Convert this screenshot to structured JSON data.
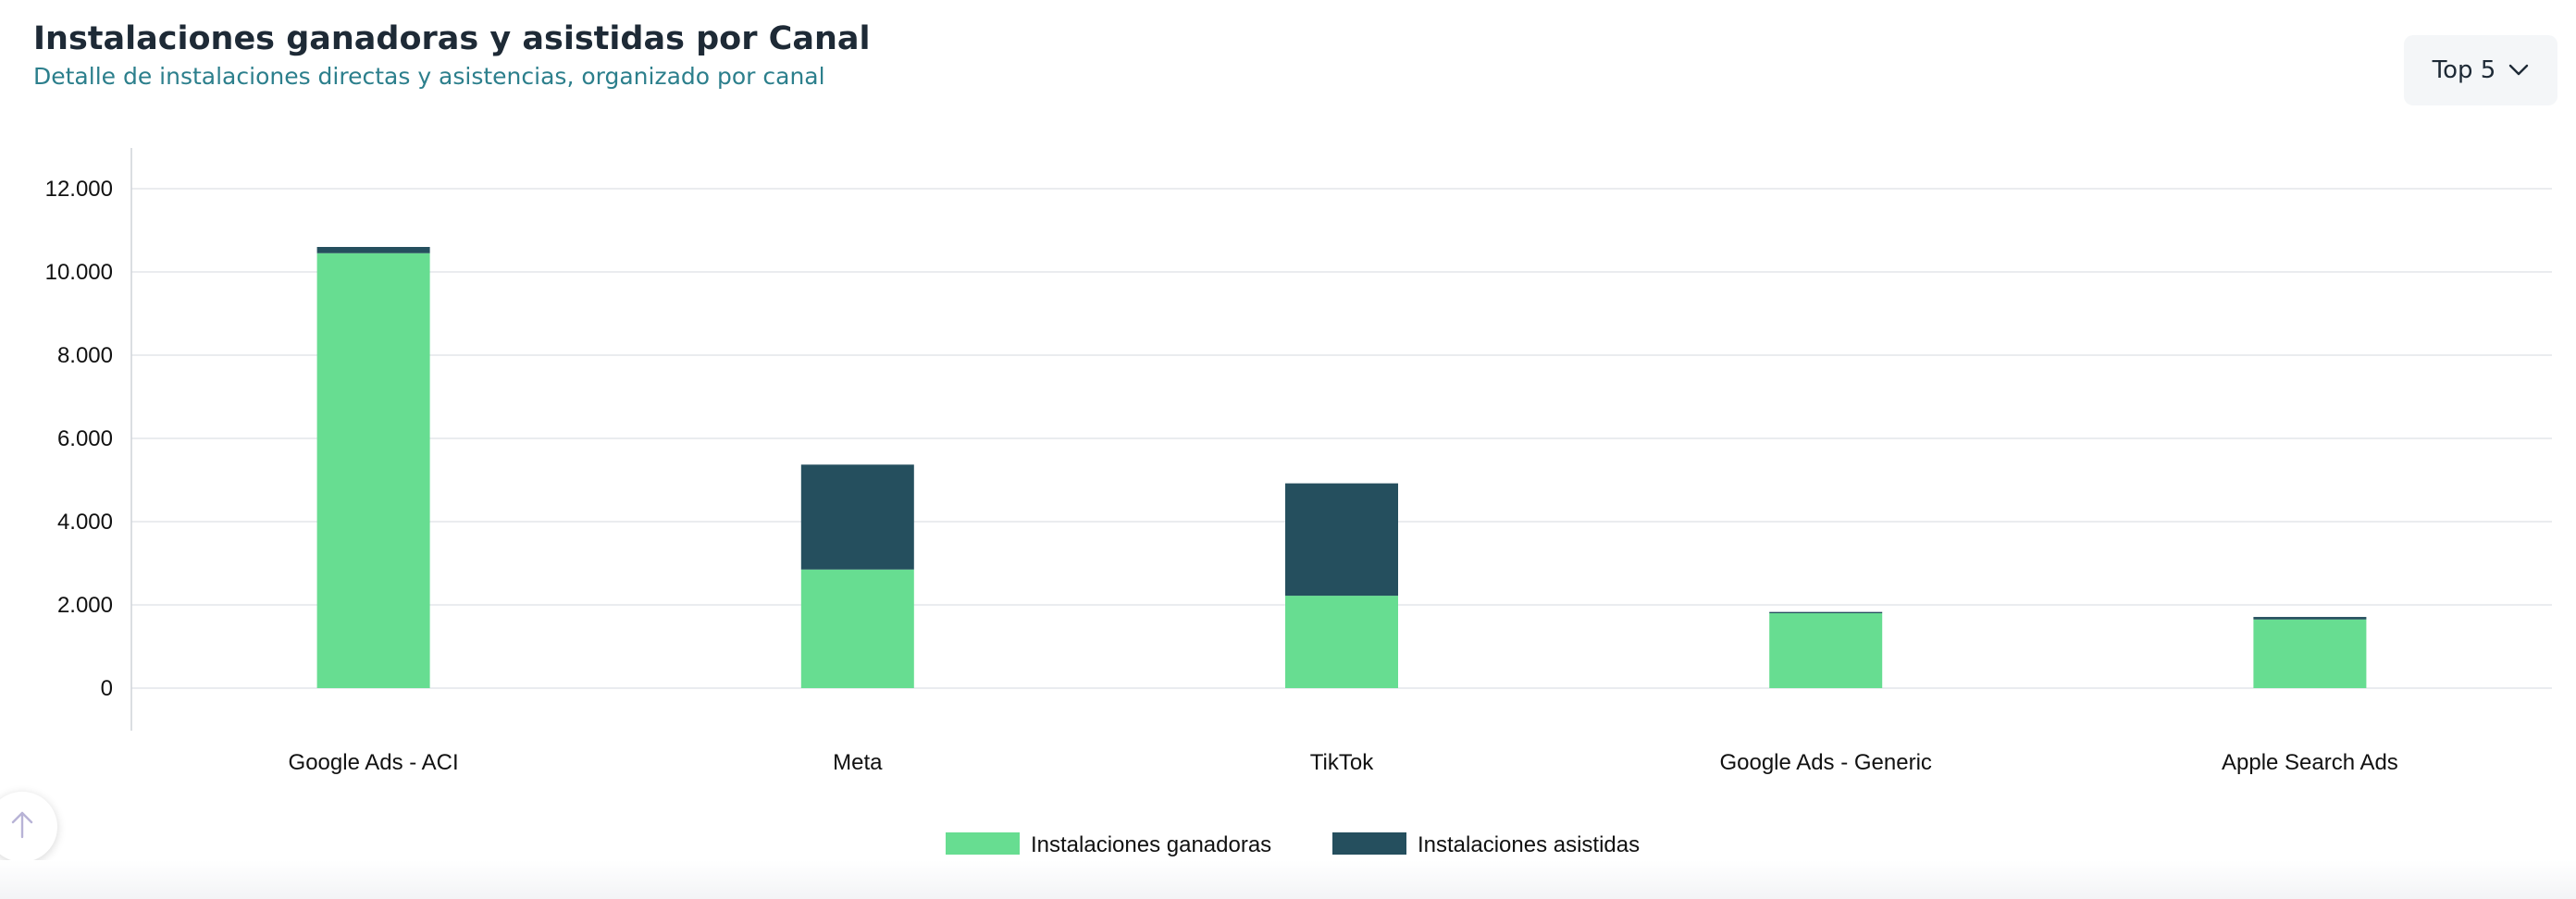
{
  "header": {
    "title": "Instalaciones ganadoras y asistidas por Canal",
    "subtitle": "Detalle de instalaciones directas y asistencias, organizado por canal"
  },
  "top_select": {
    "label": "Top 5",
    "icon": "chevron-down-icon"
  },
  "scroll_top": {
    "icon": "arrow-up-icon"
  },
  "colors": {
    "ganadoras": "#67dd91",
    "asistidas": "#254f5e",
    "grid": "#e4e6ea",
    "axis": "#cfd3d8",
    "text": "#111111"
  },
  "chart_data": {
    "type": "bar",
    "stacked": true,
    "categories": [
      "Google Ads - ACI",
      "Meta",
      "TikTok",
      "Google Ads - Generic",
      "Apple Search Ads"
    ],
    "series": [
      {
        "name": "Instalaciones ganadoras",
        "values": [
          10450,
          2850,
          2220,
          1800,
          1650
        ]
      },
      {
        "name": "Instalaciones asistidas",
        "values": [
          150,
          2520,
          2700,
          30,
          60
        ]
      }
    ],
    "y_ticks": [
      "0",
      "2.000",
      "4.000",
      "6.000",
      "8.000",
      "10.000",
      "12.000"
    ],
    "ylim": [
      0,
      12000
    ],
    "grid": true,
    "legend": "bottom-center"
  }
}
